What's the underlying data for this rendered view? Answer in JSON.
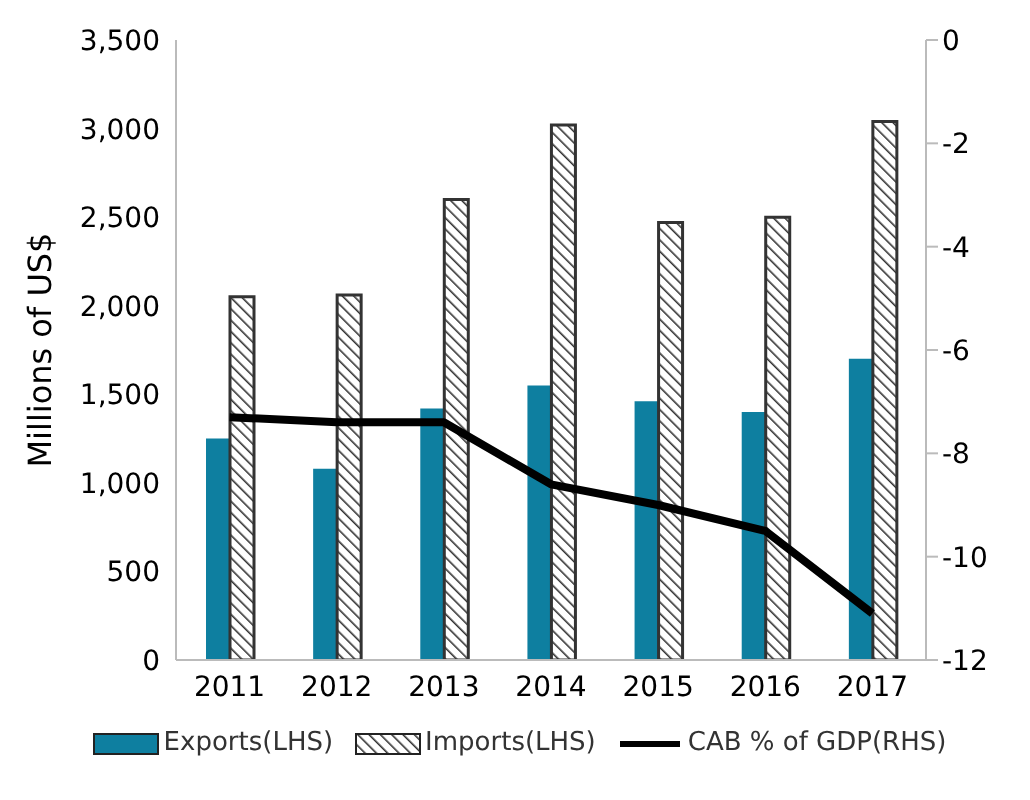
{
  "chart_data": {
    "type": "bar",
    "ylabel": "Millions of US$",
    "categories": [
      "2011",
      "2012",
      "2013",
      "2014",
      "2015",
      "2016",
      "2017"
    ],
    "series": [
      {
        "name": "Exports(LHS)",
        "color": "#0e7fa0",
        "values": [
          1250,
          1080,
          1420,
          1550,
          1460,
          1400,
          1700
        ]
      },
      {
        "name": "Imports(LHS)",
        "color": "#333333",
        "values": [
          2050,
          2060,
          2600,
          3020,
          2470,
          2500,
          3040
        ]
      },
      {
        "name": "CAB % of GDP(RHS)",
        "type": "line",
        "axis": "y2",
        "color": "#000000",
        "values": [
          -7.3,
          -7.4,
          -7.4,
          -8.6,
          -9.0,
          -9.5,
          -11.1
        ]
      }
    ],
    "ylim": [
      0,
      3500
    ],
    "yticks": [
      0,
      500,
      {
        "value": 1000,
        "label": "1,000"
      },
      {
        "value": 1500,
        "label": "1,500"
      },
      {
        "value": 2000,
        "label": "2,000"
      },
      {
        "value": 2500,
        "label": "2,500"
      },
      {
        "value": 3000,
        "label": "3,000"
      },
      {
        "value": 3500,
        "label": "3,500"
      }
    ],
    "y2lim": [
      -12,
      0
    ],
    "y2ticks": [
      -12,
      -10,
      -8,
      -6,
      -4,
      -2,
      0
    ],
    "grid": false,
    "legend": "bottom",
    "marker": "none",
    "line_style": "solid"
  }
}
